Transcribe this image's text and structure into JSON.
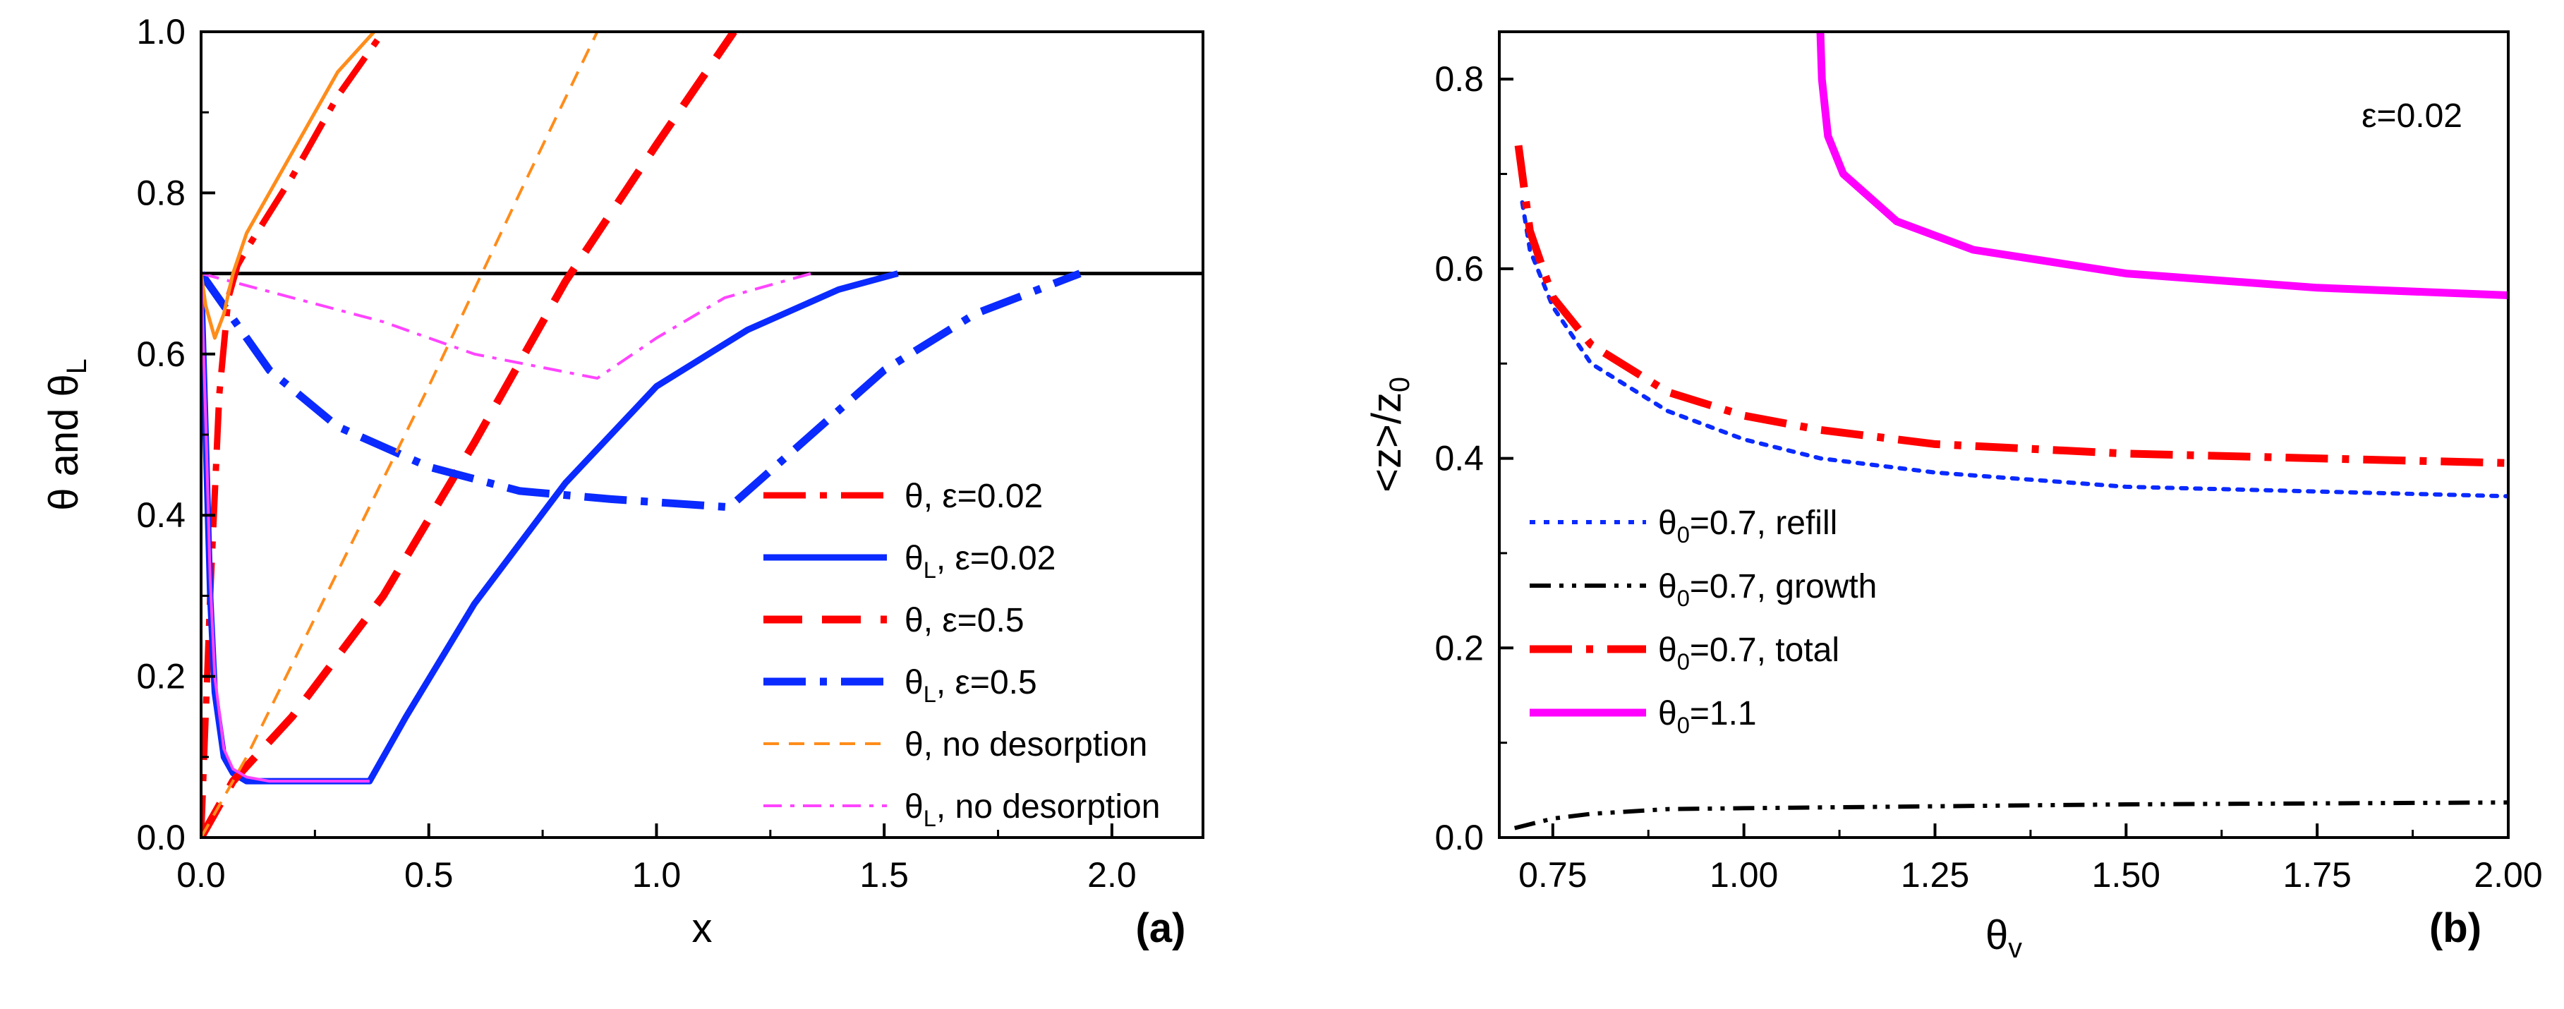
{
  "chart_data": [
    {
      "type": "line",
      "panel_label": "(a)",
      "xlabel": "x",
      "ylabel": "θ and θL",
      "xlim": [
        0,
        2.2
      ],
      "ylim": [
        0,
        1.0
      ],
      "xticks": [
        0.0,
        0.5,
        1.0,
        1.5,
        2.0
      ],
      "xtick_labels": [
        "0.0",
        "0.5",
        "1.0",
        "1.5",
        "2.0"
      ],
      "yticks": [
        0.0,
        0.2,
        0.4,
        0.6,
        0.8,
        1.0
      ],
      "ytick_labels": [
        "0.0",
        "0.2",
        "0.4",
        "0.6",
        "0.8",
        "1.0"
      ],
      "reference_line": {
        "y": 0.7,
        "color": "#000000"
      },
      "legend_position": "bottom-right",
      "series": [
        {
          "name": "θ, ε=0.02",
          "legend": {
            "sym": "θ",
            "sub": "",
            "rest": ", ε=0.02"
          },
          "color": "#ff0000",
          "style": "dashdot",
          "width": 9,
          "x": [
            0.0,
            0.02,
            0.04,
            0.06,
            0.08,
            0.1,
            0.2,
            0.3,
            0.4
          ],
          "y": [
            0.0,
            0.3,
            0.55,
            0.67,
            0.71,
            0.73,
            0.82,
            0.92,
            1.0
          ]
        },
        {
          "name": "θL, ε=0.02",
          "legend": {
            "sym": "θ",
            "sub": "L",
            "rest": ", ε=0.02"
          },
          "color": "#0a2aff",
          "style": "solid",
          "width": 9,
          "x": [
            0.0,
            0.01,
            0.02,
            0.03,
            0.05,
            0.07,
            0.1,
            0.15,
            0.37,
            0.45,
            0.6,
            0.8,
            1.0,
            1.2,
            1.4,
            1.53
          ],
          "y": [
            0.7,
            0.5,
            0.3,
            0.18,
            0.1,
            0.08,
            0.07,
            0.07,
            0.07,
            0.15,
            0.29,
            0.44,
            0.56,
            0.63,
            0.68,
            0.7
          ]
        },
        {
          "name": "θ, ε=0.5",
          "legend": {
            "sym": "θ",
            "sub": "",
            "rest": ", ε=0.5"
          },
          "color": "#ff0000",
          "style": "dash",
          "width": 11,
          "x": [
            0.0,
            0.07,
            0.2,
            0.4,
            0.6,
            0.8,
            1.0,
            1.17
          ],
          "y": [
            0.0,
            0.07,
            0.15,
            0.3,
            0.49,
            0.69,
            0.86,
            1.0
          ]
        },
        {
          "name": "θL, ε=0.5",
          "legend": {
            "sym": "θ",
            "sub": "L",
            "rest": ", ε=0.5"
          },
          "color": "#0a2aff",
          "style": "dashdot",
          "width": 11,
          "x": [
            0.0,
            0.05,
            0.15,
            0.3,
            0.5,
            0.7,
            0.9,
            1.16,
            1.3,
            1.5,
            1.7,
            1.93
          ],
          "y": [
            0.7,
            0.66,
            0.58,
            0.51,
            0.46,
            0.43,
            0.42,
            0.41,
            0.48,
            0.58,
            0.65,
            0.7
          ]
        },
        {
          "name": "θ, no desorption",
          "legend": {
            "sym": "θ",
            "sub": "",
            "rest": ", no desorption"
          },
          "color": "#ff8c1a",
          "style": "shortdash",
          "width": 4,
          "x": [
            0.0,
            0.1,
            0.3,
            0.5,
            0.7,
            0.87
          ],
          "y": [
            0.0,
            0.1,
            0.33,
            0.56,
            0.8,
            1.0
          ]
        },
        {
          "name": "θL, no desorption",
          "legend": {
            "sym": "θ",
            "sub": "L",
            "rest": ", no desorption"
          },
          "color": "#ff44ff",
          "style": "dashdotthin",
          "width": 4,
          "x": [
            0.0,
            0.2,
            0.4,
            0.6,
            0.87,
            1.0,
            1.15,
            1.34
          ],
          "y": [
            0.7,
            0.67,
            0.64,
            0.6,
            0.57,
            0.62,
            0.67,
            0.7
          ]
        },
        {
          "name": "θ, ε=0.02 (orange solid)",
          "legend": null,
          "color": "#ff8c1a",
          "style": "solid",
          "width": 5,
          "x": [
            0.0,
            0.01,
            0.03,
            0.05,
            0.07,
            0.1,
            0.2,
            0.3,
            0.38
          ],
          "y": [
            0.7,
            0.66,
            0.62,
            0.65,
            0.7,
            0.75,
            0.85,
            0.95,
            1.0
          ]
        },
        {
          "name": "θL, ε=0.02 (magenta thin)",
          "legend": null,
          "color": "#ff44ff",
          "style": "solid",
          "width": 4,
          "x": [
            0.0,
            0.01,
            0.02,
            0.03,
            0.05,
            0.07,
            0.1,
            0.15,
            0.37
          ],
          "y": [
            0.7,
            0.52,
            0.32,
            0.2,
            0.11,
            0.085,
            0.075,
            0.07,
            0.07
          ]
        }
      ]
    },
    {
      "type": "line",
      "panel_label": "(b)",
      "xlabel": "θv",
      "ylabel": "<z>/z0",
      "xlim": [
        0.68,
        2.0
      ],
      "ylim": [
        0,
        0.85
      ],
      "xticks": [
        0.75,
        1.0,
        1.25,
        1.5,
        1.75,
        2.0
      ],
      "xtick_labels": [
        "0.75",
        "1.00",
        "1.25",
        "1.50",
        "1.75",
        "2.00"
      ],
      "yticks": [
        0.0,
        0.2,
        0.4,
        0.6,
        0.8
      ],
      "ytick_labels": [
        "0.0",
        "0.2",
        "0.4",
        "0.6",
        "0.8"
      ],
      "annotation": "ε=0.02",
      "legend_position": "bottom-left",
      "series": [
        {
          "name": "θ0=0.7, refill",
          "legend": {
            "sym": "θ",
            "sub": "0",
            "rest": "=0.7, refill"
          },
          "color": "#0a2aff",
          "style": "dot",
          "width": 6,
          "x": [
            0.71,
            0.72,
            0.75,
            0.8,
            0.9,
            1.0,
            1.1,
            1.25,
            1.5,
            1.75,
            2.0
          ],
          "y": [
            0.67,
            0.62,
            0.56,
            0.5,
            0.45,
            0.42,
            0.4,
            0.385,
            0.37,
            0.365,
            0.36
          ]
        },
        {
          "name": "θ0=0.7, growth",
          "legend": {
            "sym": "θ",
            "sub": "0",
            "rest": "=0.7, growth"
          },
          "color": "#000000",
          "style": "dashdotdot",
          "width": 6,
          "x": [
            0.7,
            0.75,
            0.8,
            0.9,
            1.0,
            1.25,
            1.5,
            1.75,
            2.0
          ],
          "y": [
            0.01,
            0.02,
            0.025,
            0.03,
            0.031,
            0.033,
            0.035,
            0.036,
            0.037
          ]
        },
        {
          "name": "θ0=0.7, total",
          "legend": {
            "sym": "θ",
            "sub": "0",
            "rest": "=0.7, total"
          },
          "color": "#ff0000",
          "style": "dashdot",
          "width": 11,
          "x": [
            0.705,
            0.72,
            0.75,
            0.8,
            0.9,
            1.0,
            1.1,
            1.25,
            1.5,
            1.75,
            2.0
          ],
          "y": [
            0.73,
            0.64,
            0.57,
            0.52,
            0.47,
            0.445,
            0.43,
            0.415,
            0.405,
            0.4,
            0.395
          ]
        },
        {
          "name": "θ0=1.1",
          "legend": {
            "sym": "θ",
            "sub": "0",
            "rest": "=1.1"
          },
          "color": "#ff00ff",
          "style": "solid",
          "width": 11,
          "x": [
            1.1,
            1.102,
            1.11,
            1.13,
            1.2,
            1.3,
            1.5,
            1.75,
            2.0
          ],
          "y": [
            0.85,
            0.8,
            0.74,
            0.7,
            0.65,
            0.62,
            0.595,
            0.58,
            0.572
          ]
        }
      ]
    }
  ]
}
